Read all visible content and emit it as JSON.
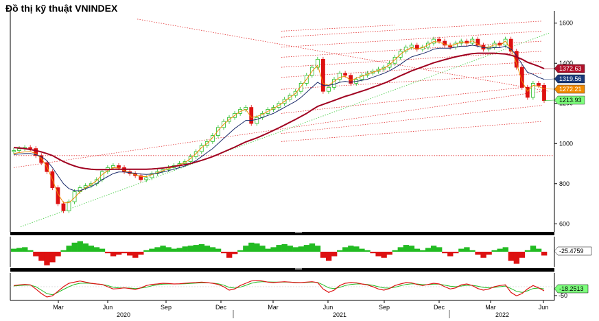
{
  "title": "Đồ thị kỹ thuật VNINDEX",
  "colors": {
    "up": "#22bb22",
    "down": "#dd1111",
    "ma_long": "#a00020",
    "ma_mid": "#1a2a6a",
    "ma_short": "#f08a00",
    "trend_red": "#e23030",
    "trend_green": "#5fd35f",
    "separator": "#000000"
  },
  "chart_data": [
    {
      "type": "line",
      "name": "price",
      "ylim": [
        560,
        1640
      ],
      "y_ticks": [
        "1600",
        "1400",
        "1200",
        "1000",
        "800",
        "600"
      ],
      "x_ticks": [
        "Mar",
        "Jun",
        "Sep",
        "Dec",
        "Mar",
        "Jun",
        "Sep",
        "Dec",
        "Mar",
        "Jun"
      ],
      "x_years": [
        "2020",
        "2021",
        "2022"
      ],
      "tags": [
        {
          "label": "1372.63",
          "value": 1372.63,
          "color": "#b0102a"
        },
        {
          "label": "1319.56",
          "value": 1319.56,
          "color": "#1a3a7a"
        },
        {
          "label": "1272.21",
          "value": 1272.21,
          "color": "#f08a00"
        },
        {
          "label": "1213.93",
          "value": 1213.93,
          "color": "#22bb22"
        }
      ],
      "close_weekly": [
        965,
        975,
        980,
        975,
        940,
        905,
        860,
        780,
        700,
        665,
        710,
        760,
        780,
        790,
        800,
        820,
        860,
        880,
        890,
        880,
        860,
        850,
        840,
        820,
        830,
        850,
        860,
        870,
        880,
        890,
        900,
        910,
        935,
        960,
        990,
        1010,
        1040,
        1080,
        1110,
        1130,
        1150,
        1170,
        1180,
        1100,
        1130,
        1150,
        1170,
        1180,
        1200,
        1220,
        1240,
        1260,
        1300,
        1340,
        1380,
        1420,
        1260,
        1280,
        1320,
        1350,
        1340,
        1300,
        1320,
        1340,
        1350,
        1360,
        1370,
        1380,
        1400,
        1430,
        1460,
        1480,
        1490,
        1470,
        1480,
        1500,
        1520,
        1510,
        1490,
        1480,
        1500,
        1510,
        1500,
        1520,
        1490,
        1470,
        1480,
        1500,
        1490,
        1520,
        1460,
        1380,
        1280,
        1230,
        1300,
        1290,
        1214
      ],
      "ma_short": [
        950,
        955,
        958,
        960,
        950,
        925,
        885,
        820,
        750,
        705,
        705,
        730,
        760,
        780,
        795,
        815,
        845,
        865,
        880,
        878,
        865,
        855,
        845,
        835,
        835,
        845,
        855,
        865,
        875,
        885,
        895,
        905,
        925,
        950,
        980,
        1000,
        1030,
        1065,
        1095,
        1120,
        1140,
        1160,
        1170,
        1130,
        1135,
        1145,
        1160,
        1175,
        1190,
        1210,
        1230,
        1250,
        1285,
        1320,
        1360,
        1390,
        1300,
        1290,
        1310,
        1330,
        1335,
        1315,
        1325,
        1335,
        1345,
        1355,
        1365,
        1375,
        1392,
        1418,
        1445,
        1465,
        1478,
        1472,
        1478,
        1492,
        1508,
        1505,
        1495,
        1487,
        1495,
        1505,
        1500,
        1512,
        1495,
        1478,
        1480,
        1492,
        1490,
        1510,
        1470,
        1400,
        1310,
        1260,
        1290,
        1285,
        1272
      ],
      "ma_mid": [
        945,
        948,
        950,
        950,
        945,
        935,
        915,
        880,
        840,
        800,
        775,
        765,
        765,
        775,
        785,
        800,
        820,
        835,
        850,
        858,
        858,
        855,
        852,
        848,
        846,
        848,
        852,
        858,
        865,
        872,
        880,
        888,
        900,
        915,
        935,
        955,
        975,
        1000,
        1025,
        1050,
        1075,
        1095,
        1115,
        1115,
        1120,
        1130,
        1140,
        1150,
        1165,
        1180,
        1195,
        1210,
        1230,
        1255,
        1280,
        1305,
        1290,
        1290,
        1295,
        1305,
        1310,
        1305,
        1310,
        1315,
        1320,
        1330,
        1340,
        1350,
        1362,
        1378,
        1395,
        1415,
        1432,
        1440,
        1448,
        1458,
        1470,
        1475,
        1475,
        1475,
        1480,
        1485,
        1485,
        1490,
        1485,
        1478,
        1475,
        1478,
        1478,
        1485,
        1470,
        1440,
        1395,
        1355,
        1345,
        1330,
        1320
      ],
      "ma_long": [
        980,
        978,
        975,
        970,
        965,
        958,
        950,
        940,
        925,
        910,
        898,
        888,
        880,
        875,
        872,
        870,
        870,
        870,
        872,
        872,
        872,
        872,
        872,
        872,
        872,
        873,
        875,
        878,
        882,
        886,
        890,
        895,
        900,
        908,
        916,
        925,
        935,
        946,
        958,
        970,
        982,
        995,
        1008,
        1018,
        1028,
        1040,
        1052,
        1065,
        1078,
        1092,
        1106,
        1120,
        1135,
        1150,
        1168,
        1185,
        1195,
        1205,
        1215,
        1225,
        1235,
        1243,
        1252,
        1261,
        1270,
        1280,
        1290,
        1300,
        1312,
        1325,
        1338,
        1350,
        1362,
        1372,
        1382,
        1392,
        1402,
        1410,
        1418,
        1425,
        1432,
        1438,
        1443,
        1448,
        1450,
        1450,
        1450,
        1450,
        1448,
        1446,
        1440,
        1432,
        1420,
        1405,
        1395,
        1385,
        1373
      ]
    },
    {
      "type": "bar",
      "name": "oscillator-1",
      "ylim": [
        -100,
        100
      ],
      "last_label": "-25.4759",
      "values": [
        20,
        25,
        30,
        10,
        -30,
        -60,
        -90,
        -70,
        -30,
        10,
        40,
        60,
        70,
        55,
        40,
        30,
        20,
        -10,
        -30,
        -20,
        -10,
        -25,
        -40,
        -20,
        10,
        20,
        30,
        40,
        30,
        20,
        25,
        35,
        40,
        45,
        50,
        40,
        30,
        20,
        -10,
        -40,
        -15,
        10,
        40,
        60,
        55,
        40,
        20,
        30,
        45,
        50,
        40,
        30,
        35,
        45,
        55,
        40,
        -40,
        -60,
        -30,
        10,
        30,
        40,
        35,
        20,
        10,
        -10,
        -30,
        -40,
        -20,
        10,
        30,
        45,
        40,
        20,
        10,
        25,
        40,
        30,
        -10,
        -30,
        -10,
        20,
        30,
        10,
        -20,
        -40,
        -20,
        10,
        20,
        30,
        -60,
        -80,
        -40,
        10,
        40,
        20,
        -25
      ]
    },
    {
      "type": "line",
      "name": "oscillator-2",
      "ylim": [
        -60,
        60
      ],
      "last_label": "-18.2513",
      "label_50": "-50",
      "line_a": [
        5,
        8,
        10,
        8,
        -10,
        -30,
        -45,
        -40,
        -20,
        0,
        15,
        20,
        25,
        20,
        15,
        12,
        10,
        0,
        -10,
        -8,
        -5,
        -8,
        -12,
        -5,
        5,
        10,
        12,
        15,
        14,
        12,
        13,
        15,
        17,
        18,
        20,
        18,
        15,
        10,
        0,
        -15,
        -10,
        5,
        15,
        25,
        28,
        25,
        20,
        18,
        20,
        22,
        20,
        18,
        18,
        20,
        22,
        18,
        -10,
        -25,
        -15,
        5,
        15,
        18,
        17,
        12,
        8,
        0,
        -10,
        -15,
        -8,
        5,
        12,
        18,
        17,
        10,
        5,
        10,
        15,
        12,
        0,
        -10,
        -5,
        8,
        12,
        5,
        -8,
        -15,
        -10,
        0,
        5,
        8,
        -25,
        -40,
        -30,
        -10,
        5,
        -5,
        -18
      ],
      "line_b": [
        3,
        5,
        7,
        7,
        0,
        -15,
        -30,
        -35,
        -25,
        -12,
        0,
        10,
        15,
        16,
        14,
        12,
        10,
        5,
        -2,
        -5,
        -5,
        -6,
        -8,
        -6,
        -2,
        4,
        8,
        11,
        12,
        12,
        12,
        13,
        14,
        16,
        17,
        17,
        16,
        13,
        7,
        -3,
        -6,
        -2,
        6,
        15,
        20,
        22,
        21,
        20,
        20,
        20,
        20,
        19,
        18,
        19,
        20,
        19,
        8,
        -5,
        -8,
        -3,
        5,
        10,
        12,
        12,
        10,
        6,
        0,
        -5,
        -6,
        -2,
        4,
        10,
        13,
        12,
        9,
        9,
        11,
        11,
        7,
        2,
        0,
        3,
        6,
        6,
        2,
        -3,
        -5,
        -3,
        0,
        3,
        -8,
        -20,
        -25,
        -18,
        -8,
        -6,
        -10
      ]
    }
  ]
}
